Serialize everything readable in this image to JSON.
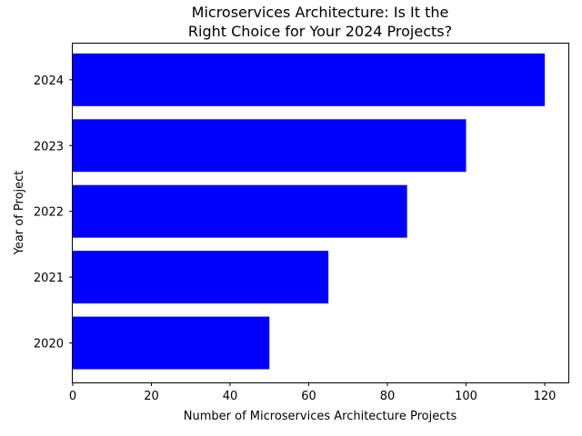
{
  "chart_data": {
    "type": "bar",
    "orientation": "horizontal",
    "title": [
      "Microservices Architecture: Is It the",
      "Right Choice for Your 2024 Projects?"
    ],
    "xlabel": "Number of Microservices Architecture Projects",
    "ylabel": "Year of Project",
    "categories": [
      "2020",
      "2021",
      "2022",
      "2023",
      "2024"
    ],
    "values": [
      50,
      65,
      85,
      100,
      120
    ],
    "xlim": [
      0,
      126
    ],
    "xticks": [
      0,
      20,
      40,
      60,
      80,
      100,
      120
    ],
    "bar_color": "#0000ff",
    "grid": false,
    "legend": "none"
  }
}
